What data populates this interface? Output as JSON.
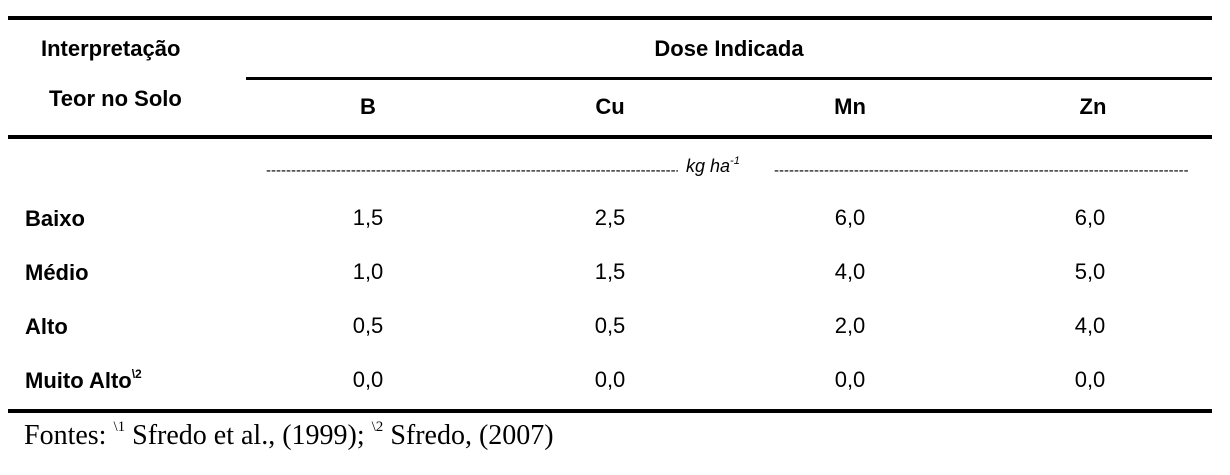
{
  "table": {
    "header": {
      "left_line1": "Interpretação",
      "left_line2": "Teor no Solo",
      "group": "Dose Indicada",
      "columns": [
        "B",
        "Cu",
        "Mn",
        "Zn"
      ]
    },
    "unit": {
      "text": "kg ha",
      "superscript": "-1"
    },
    "rows": [
      {
        "label": "Baixo",
        "label_sup": "",
        "values": [
          "1,5",
          "2,5",
          "6,0",
          "6,0"
        ]
      },
      {
        "label": "Médio",
        "label_sup": "",
        "values": [
          "1,0",
          "1,5",
          "4,0",
          "5,0"
        ]
      },
      {
        "label": "Alto",
        "label_sup": "",
        "values": [
          "0,5",
          "0,5",
          "2,0",
          "4,0"
        ]
      },
      {
        "label": "Muito Alto",
        "label_sup": "\\2",
        "values": [
          "0,0",
          "0,0",
          "0,0",
          "0,0"
        ]
      }
    ]
  },
  "footnote": {
    "prefix": "Fontes: ",
    "ref1_mark": "\\1",
    "ref1_text": " Sfredo et al., (1999); ",
    "ref2_mark": "\\2",
    "ref2_text": " Sfredo, (2007)"
  }
}
